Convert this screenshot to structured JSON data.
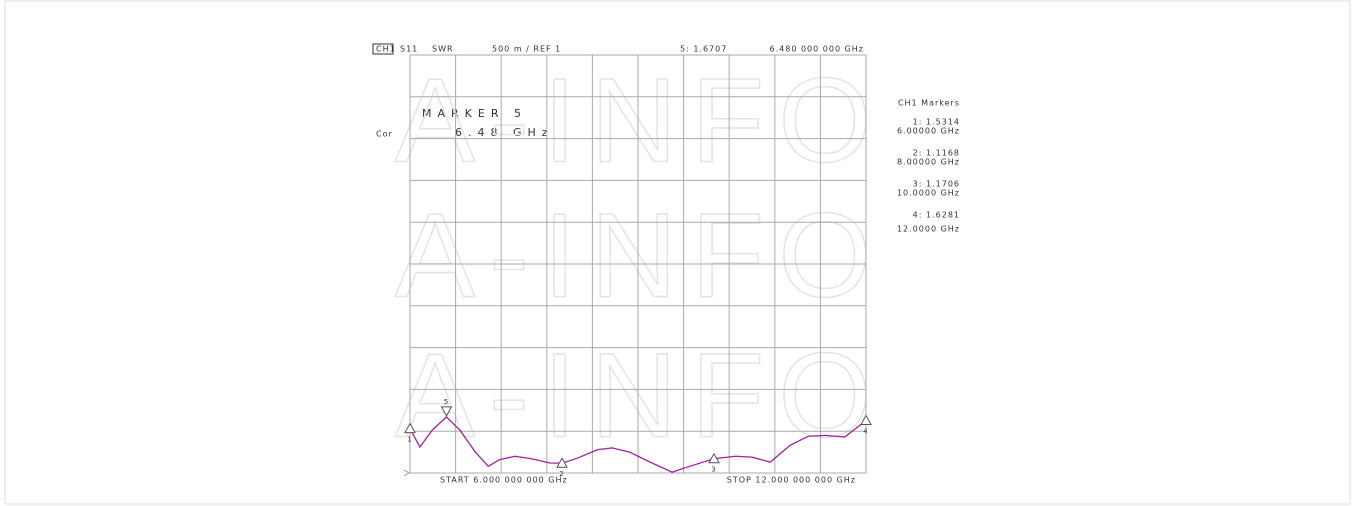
{
  "chart_data": {
    "type": "line",
    "channel": "CH1",
    "parameter": "S11",
    "format": "SWR",
    "scale": "500 m / REF 1",
    "active_marker_readout": "5: 1.6707",
    "active_marker_freq": "6.480 000 000 GHz",
    "correction": "Cor",
    "marker_box_title": "MARKER 5",
    "marker_box_value": "6.48 GHz",
    "marker_list_title": "CH1 Markers",
    "start": "START 6.000 000 000 GHz",
    "stop": "STOP 12.000 000 000 GHz",
    "watermark": "A-INFO",
    "color": "#a020a0",
    "grid": true,
    "xlim": [
      6,
      12
    ],
    "ylim": [
      1,
      6
    ],
    "xticks": [
      6,
      6.6,
      7.2,
      7.8,
      8.4,
      9,
      9.6,
      10.2,
      10.8,
      11.4,
      12
    ],
    "yticks": [
      1,
      1.5,
      2,
      2.5,
      3,
      3.5,
      4,
      4.5,
      5,
      5.5,
      6
    ],
    "x": [
      6.0,
      6.13,
      6.29,
      6.48,
      6.66,
      6.86,
      7.03,
      7.18,
      7.38,
      7.6,
      7.84,
      8.0,
      8.21,
      8.47,
      8.66,
      8.89,
      9.16,
      9.45,
      9.68,
      10.0,
      10.28,
      10.5,
      10.74,
      11.0,
      11.24,
      11.47,
      11.72,
      12.0
    ],
    "values": [
      1.5314,
      1.31,
      1.51,
      1.6707,
      1.51,
      1.25,
      1.08,
      1.16,
      1.2,
      1.17,
      1.12,
      1.1168,
      1.18,
      1.28,
      1.3,
      1.25,
      1.13,
      1.01,
      1.08,
      1.1706,
      1.2,
      1.19,
      1.13,
      1.33,
      1.44,
      1.45,
      1.43,
      1.6281
    ],
    "markers": [
      {
        "id": "1",
        "x": 6,
        "value": 1.5314,
        "readout": "1: 1.5314",
        "freq": "6.00000 GHz"
      },
      {
        "id": "2",
        "x": 8,
        "value": 1.1168,
        "readout": "2: 1.1168",
        "freq": "8.00000 GHz"
      },
      {
        "id": "3",
        "x": 10,
        "value": 1.1706,
        "readout": "3: 1.1706",
        "freq": "10.0000 GHz"
      },
      {
        "id": "4",
        "x": 12,
        "value": 1.6281,
        "readout": "4: 1.6281",
        "freq": "12.0000 GHz"
      },
      {
        "id": "5",
        "x": 6.48,
        "value": 1.6707
      }
    ]
  }
}
